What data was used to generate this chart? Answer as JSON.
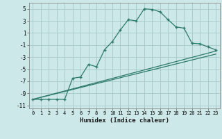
{
  "xlabel": "Humidex (Indice chaleur)",
  "bg_color": "#cce8e8",
  "grid_color": "#aacccc",
  "line_color": "#2d7a6a",
  "xlim": [
    -0.5,
    23.5
  ],
  "ylim": [
    -11.5,
    6.0
  ],
  "xticks": [
    0,
    1,
    2,
    3,
    4,
    5,
    6,
    7,
    8,
    9,
    10,
    11,
    12,
    13,
    14,
    15,
    16,
    17,
    18,
    19,
    20,
    21,
    22,
    23
  ],
  "yticks": [
    -11,
    -9,
    -7,
    -5,
    -3,
    -1,
    1,
    3,
    5
  ],
  "line1_x": [
    0,
    1,
    2,
    3,
    4,
    5,
    6,
    7,
    8,
    9,
    10,
    11,
    12,
    13,
    14,
    15,
    16,
    17,
    18,
    19,
    20,
    21,
    22,
    23
  ],
  "line1_y": [
    -10.0,
    -10.0,
    -10.0,
    -10.0,
    -10.0,
    -6.5,
    -6.3,
    -4.2,
    -4.6,
    -1.8,
    -0.4,
    1.5,
    3.2,
    3.0,
    5.0,
    4.9,
    4.5,
    3.2,
    2.0,
    1.8,
    -0.7,
    -0.8,
    -1.3,
    -1.8
  ],
  "line2_x": [
    0,
    23
  ],
  "line2_y": [
    -10.0,
    -2.0
  ],
  "line3_x": [
    0,
    23
  ],
  "line3_y": [
    -10.0,
    -2.5
  ]
}
